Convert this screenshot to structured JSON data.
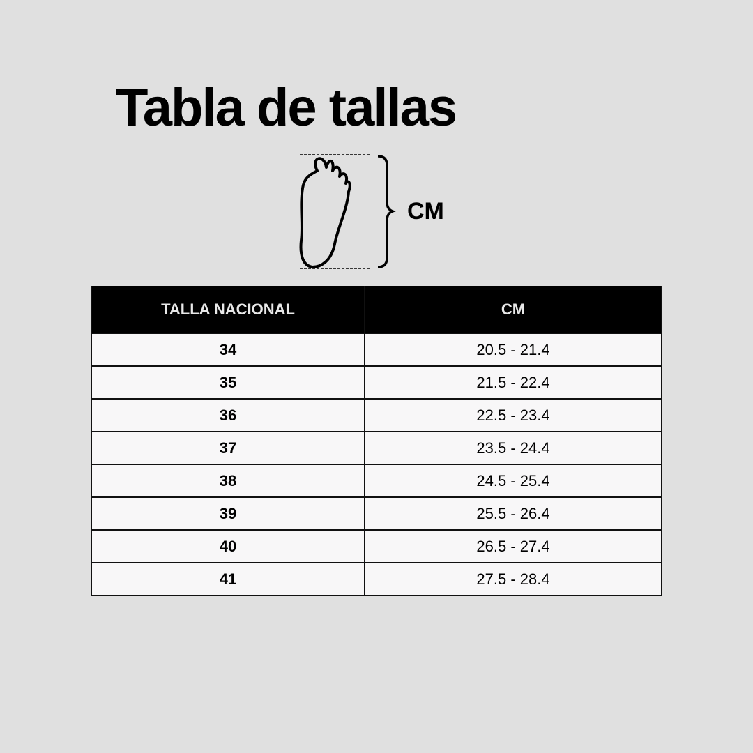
{
  "title": "Tabla de tallas",
  "diagram": {
    "icon": "foot-icon",
    "measure_label": "CM"
  },
  "table": {
    "headers": [
      "TALLA NACIONAL",
      "CM"
    ],
    "rows": [
      [
        "34",
        "20.5 - 21.4"
      ],
      [
        "35",
        "21.5 - 22.4"
      ],
      [
        "36",
        "22.5 - 23.4"
      ],
      [
        "37",
        "23.5 - 24.4"
      ],
      [
        "38",
        "24.5 - 25.4"
      ],
      [
        "39",
        "25.5 - 26.4"
      ],
      [
        "40",
        "26.5 - 27.4"
      ],
      [
        "41",
        "27.5 - 28.4"
      ]
    ]
  }
}
